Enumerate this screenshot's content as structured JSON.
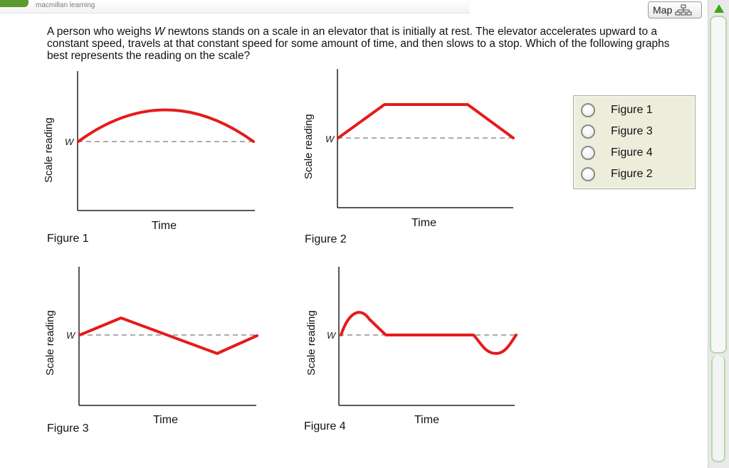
{
  "header": {
    "brand": "macmillan learning",
    "map_label": "Map"
  },
  "question": {
    "pre": "A person who weighs ",
    "var": "W",
    "post": " newtons stands on a scale in an elevator that is initially at rest. The elevator accelerates upward to a constant speed, travels at that constant speed for some amount of time, and then slows to a stop. Which of the following graphs best represents the reading on the scale?"
  },
  "figures": [
    {
      "caption": "Figure 1",
      "ylabel": "Scale reading",
      "xlabel": "Time",
      "w_label": "W",
      "curve": "arc"
    },
    {
      "caption": "Figure 2",
      "ylabel": "Scale reading",
      "xlabel": "Time",
      "w_label": "W",
      "curve": "trapezoid"
    },
    {
      "caption": "Figure 3",
      "ylabel": "Scale reading",
      "xlabel": "Time",
      "w_label": "W",
      "curve": "zigzag"
    },
    {
      "caption": "Figure 4",
      "ylabel": "Scale reading",
      "xlabel": "Time",
      "w_label": "W",
      "curve": "bump-flat-dip"
    }
  ],
  "answer_options": [
    "Figure 1",
    "Figure 3",
    "Figure 4",
    "Figure 2"
  ],
  "colors": {
    "curve": "#e51b1b",
    "dashed": "#555555",
    "axis": "#222222",
    "brand_green": "#5a9a2c"
  }
}
